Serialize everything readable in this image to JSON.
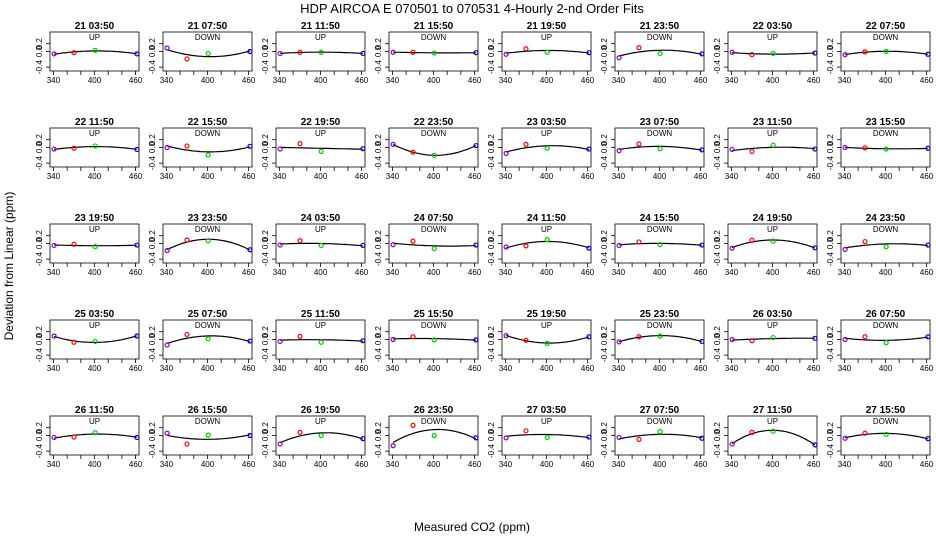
{
  "chart_data": {
    "type": "scatter",
    "title": "HDP   AIRCOA E   070501 to 070531   4-Hourly 2-nd Order Fits",
    "xlabel": "Measured CO2 (ppm)",
    "ylabel": "Deviation from Linear (ppm)",
    "xlim": [
      335,
      465
    ],
    "ylim": [
      -0.5,
      0.5
    ],
    "x_ticks": [
      340,
      360,
      380,
      400,
      420,
      440,
      460
    ],
    "x_tick_labels": [
      "340",
      "400",
      "460"
    ],
    "y_ticks": [
      -0.4,
      0.0,
      0.2
    ],
    "y_tick_labels": [
      "-0.4",
      "0.0",
      "0.2"
    ],
    "standards_x": [
      341,
      370,
      401,
      462
    ],
    "standard_colors": [
      "#8800cc",
      "#ff0000",
      "#00cc00",
      "#0000cc"
    ],
    "fit_color": "#000000",
    "panels": [
      {
        "title": "21 03:50",
        "label": "UP",
        "y": [
          -0.06,
          -0.03,
          0.03,
          -0.06
        ]
      },
      {
        "title": "21 07:50",
        "label": "DOWN",
        "y": [
          0.09,
          -0.19,
          -0.05,
          0.0
        ]
      },
      {
        "title": "21 11:50",
        "label": "UP",
        "y": [
          -0.05,
          -0.02,
          -0.02,
          -0.05
        ]
      },
      {
        "title": "21 15:50",
        "label": "DOWN",
        "y": [
          -0.02,
          -0.02,
          -0.04,
          -0.03
        ]
      },
      {
        "title": "21 19:50",
        "label": "UP",
        "y": [
          -0.07,
          0.07,
          -0.02,
          -0.03
        ]
      },
      {
        "title": "21 23:50",
        "label": "DOWN",
        "y": [
          -0.16,
          0.1,
          -0.05,
          -0.06
        ]
      },
      {
        "title": "22 03:50",
        "label": "UP",
        "y": [
          -0.02,
          -0.08,
          -0.05,
          -0.04
        ]
      },
      {
        "title": "22 07:50",
        "label": "DOWN",
        "y": [
          -0.08,
          -0.01,
          0.0,
          -0.07
        ]
      },
      {
        "title": "22 11:50",
        "label": "UP",
        "y": [
          -0.04,
          -0.02,
          0.04,
          -0.05
        ]
      },
      {
        "title": "22 15:50",
        "label": "DOWN",
        "y": [
          0.0,
          0.04,
          -0.19,
          0.03
        ]
      },
      {
        "title": "22 19:50",
        "label": "UP",
        "y": [
          -0.04,
          0.1,
          -0.1,
          -0.03
        ]
      },
      {
        "title": "22 23:50",
        "label": "DOWN",
        "y": [
          0.08,
          -0.12,
          -0.2,
          0.05
        ]
      },
      {
        "title": "23 03:50",
        "label": "UP",
        "y": [
          -0.15,
          0.08,
          -0.02,
          -0.04
        ]
      },
      {
        "title": "23 07:50",
        "label": "DOWN",
        "y": [
          -0.08,
          0.09,
          -0.03,
          -0.06
        ]
      },
      {
        "title": "23 11:50",
        "label": "UP",
        "y": [
          -0.05,
          -0.1,
          0.06,
          -0.04
        ]
      },
      {
        "title": "23 15:50",
        "label": "DOWN",
        "y": [
          0.0,
          -0.01,
          -0.04,
          -0.02
        ]
      },
      {
        "title": "23 19:50",
        "label": "UP",
        "y": [
          -0.05,
          -0.02,
          -0.08,
          -0.04
        ]
      },
      {
        "title": "23 23:50",
        "label": "DOWN",
        "y": [
          -0.18,
          0.09,
          0.07,
          -0.16
        ]
      },
      {
        "title": "24 03:50",
        "label": "UP",
        "y": [
          -0.04,
          0.07,
          -0.05,
          -0.05
        ]
      },
      {
        "title": "24 07:50",
        "label": "DOWN",
        "y": [
          -0.03,
          0.06,
          -0.13,
          -0.04
        ]
      },
      {
        "title": "24 11:50",
        "label": "UP",
        "y": [
          -0.09,
          -0.06,
          0.1,
          -0.12
        ]
      },
      {
        "title": "24 15:50",
        "label": "DOWN",
        "y": [
          -0.05,
          0.04,
          -0.03,
          -0.04
        ]
      },
      {
        "title": "24 19:50",
        "label": "UP",
        "y": [
          -0.12,
          0.08,
          0.06,
          -0.11
        ]
      },
      {
        "title": "24 23:50",
        "label": "DOWN",
        "y": [
          -0.15,
          0.05,
          -0.08,
          -0.04
        ]
      },
      {
        "title": "25 03:50",
        "label": "UP",
        "y": [
          0.09,
          -0.07,
          -0.05,
          0.09
        ]
      },
      {
        "title": "25 07:50",
        "label": "DOWN",
        "y": [
          -0.14,
          0.13,
          0.02,
          -0.04
        ]
      },
      {
        "title": "25 11:50",
        "label": "UP",
        "y": [
          -0.05,
          0.08,
          -0.07,
          -0.03
        ]
      },
      {
        "title": "25 15:50",
        "label": "DOWN",
        "y": [
          0.0,
          0.07,
          -0.01,
          -0.01
        ]
      },
      {
        "title": "25 19:50",
        "label": "UP",
        "y": [
          0.1,
          -0.02,
          -0.1,
          0.07
        ]
      },
      {
        "title": "25 23:50",
        "label": "DOWN",
        "y": [
          -0.06,
          0.07,
          0.09,
          -0.05
        ]
      },
      {
        "title": "26 03:50",
        "label": "UP",
        "y": [
          0.0,
          -0.03,
          0.05,
          0.03
        ]
      },
      {
        "title": "26 07:50",
        "label": "DOWN",
        "y": [
          0.0,
          0.07,
          -0.08,
          0.07
        ]
      },
      {
        "title": "26 11:50",
        "label": "UP",
        "y": [
          -0.05,
          -0.04,
          0.07,
          -0.05
        ]
      },
      {
        "title": "26 15:50",
        "label": "DOWN",
        "y": [
          0.06,
          -0.22,
          0.01,
          0.0
        ]
      },
      {
        "title": "26 19:50",
        "label": "UP",
        "y": [
          -0.22,
          0.08,
          0.0,
          -0.08
        ]
      },
      {
        "title": "26 23:50",
        "label": "DOWN",
        "y": [
          -0.26,
          0.26,
          0.0,
          -0.06
        ]
      },
      {
        "title": "27 03:50",
        "label": "UP",
        "y": [
          -0.06,
          0.12,
          -0.05,
          -0.04
        ]
      },
      {
        "title": "27 07:50",
        "label": "DOWN",
        "y": [
          -0.05,
          -0.1,
          0.1,
          -0.07
        ]
      },
      {
        "title": "27 11:50",
        "label": "UP",
        "y": [
          -0.22,
          0.08,
          0.11,
          -0.24
        ]
      },
      {
        "title": "27 15:50",
        "label": "DOWN",
        "y": [
          -0.07,
          0.06,
          0.03,
          -0.08
        ]
      }
    ]
  }
}
